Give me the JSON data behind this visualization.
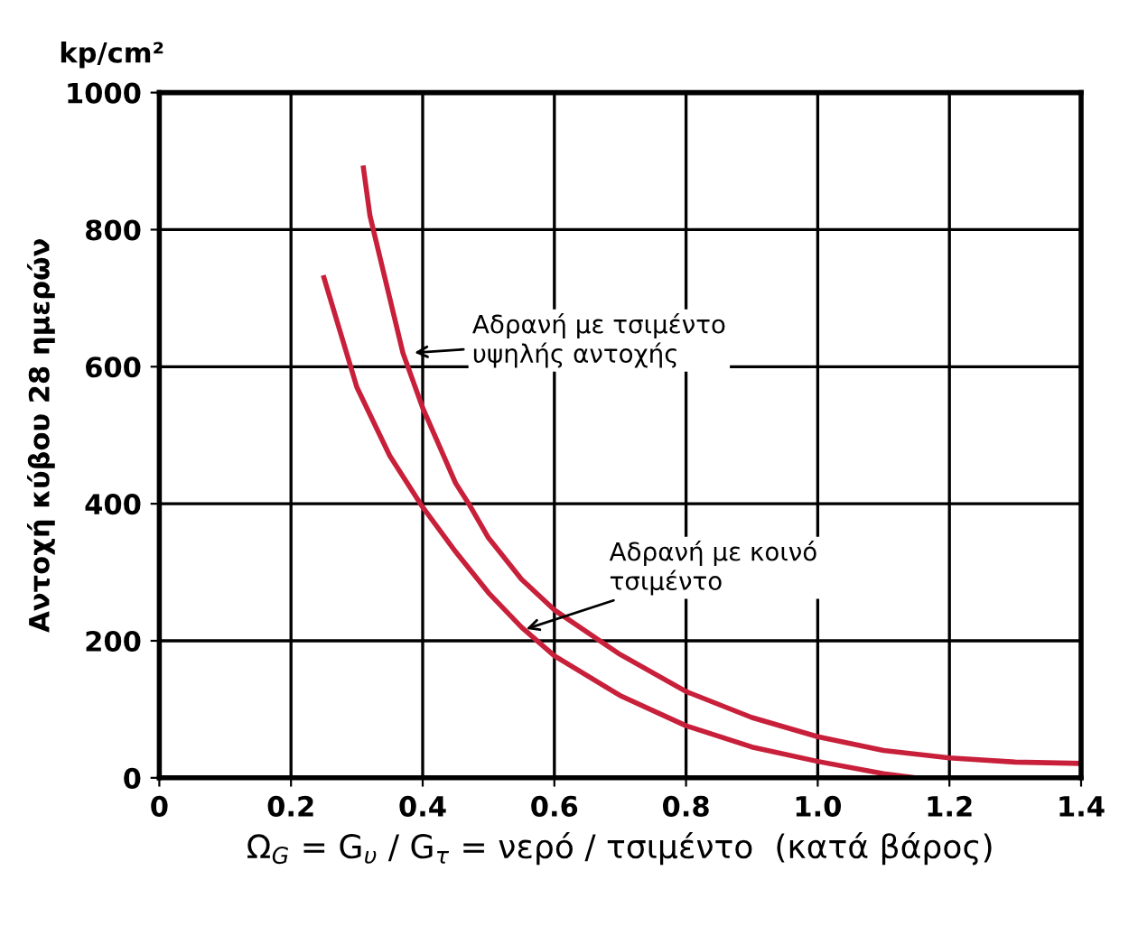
{
  "chart_data": {
    "type": "line",
    "xlabel": "Ω$_{G}$ = G$_{υ}$ / G$_{τ}$ = νερό / τσιμέντο  (κατά βάρος)",
    "ylabel": "Αντοχή κύβου 28 ημερών",
    "annotations": [
      "kp/cm²",
      {
        "text": "Αδρανή με τσιμέντο\nυψηλής αντοχής",
        "x": 0.38,
        "y": 620
      },
      {
        "text": "Αδρανή με κοινό\nτσιμέντο",
        "x": 0.55,
        "y": 215
      }
    ],
    "series": [
      {
        "color": "#c8203a",
        "x": [
          0.31,
          0.32,
          0.35,
          0.37,
          0.4,
          0.45,
          0.47,
          0.5,
          0.55,
          0.6,
          0.7,
          0.8,
          0.9,
          1.0,
          1.1,
          1.2,
          1.3,
          1.4
        ],
        "values": [
          890,
          820,
          700,
          620,
          540,
          430,
          400,
          350,
          290,
          245,
          180,
          126,
          88,
          60,
          40,
          29,
          23,
          21
        ]
      },
      {
        "color": "#c8203a",
        "x": [
          0.25,
          0.3,
          0.35,
          0.4,
          0.45,
          0.5,
          0.55,
          0.6,
          0.7,
          0.8,
          0.9,
          1.0,
          1.1,
          1.15
        ],
        "values": [
          730,
          570,
          470,
          395,
          330,
          270,
          220,
          178,
          120,
          76,
          45,
          24,
          6,
          0
        ]
      }
    ],
    "xlim": [
      0,
      1.4
    ],
    "ylim": [
      0,
      1000
    ],
    "xticks": [
      0,
      0.2,
      0.4,
      0.6,
      0.8,
      {
        "value": 1,
        "label": "1.0"
      },
      1.2,
      1.4
    ],
    "yticks": [
      0,
      200,
      400,
      600,
      800,
      1000
    ],
    "grid": true,
    "marker": "none",
    "line_style": "solid"
  }
}
